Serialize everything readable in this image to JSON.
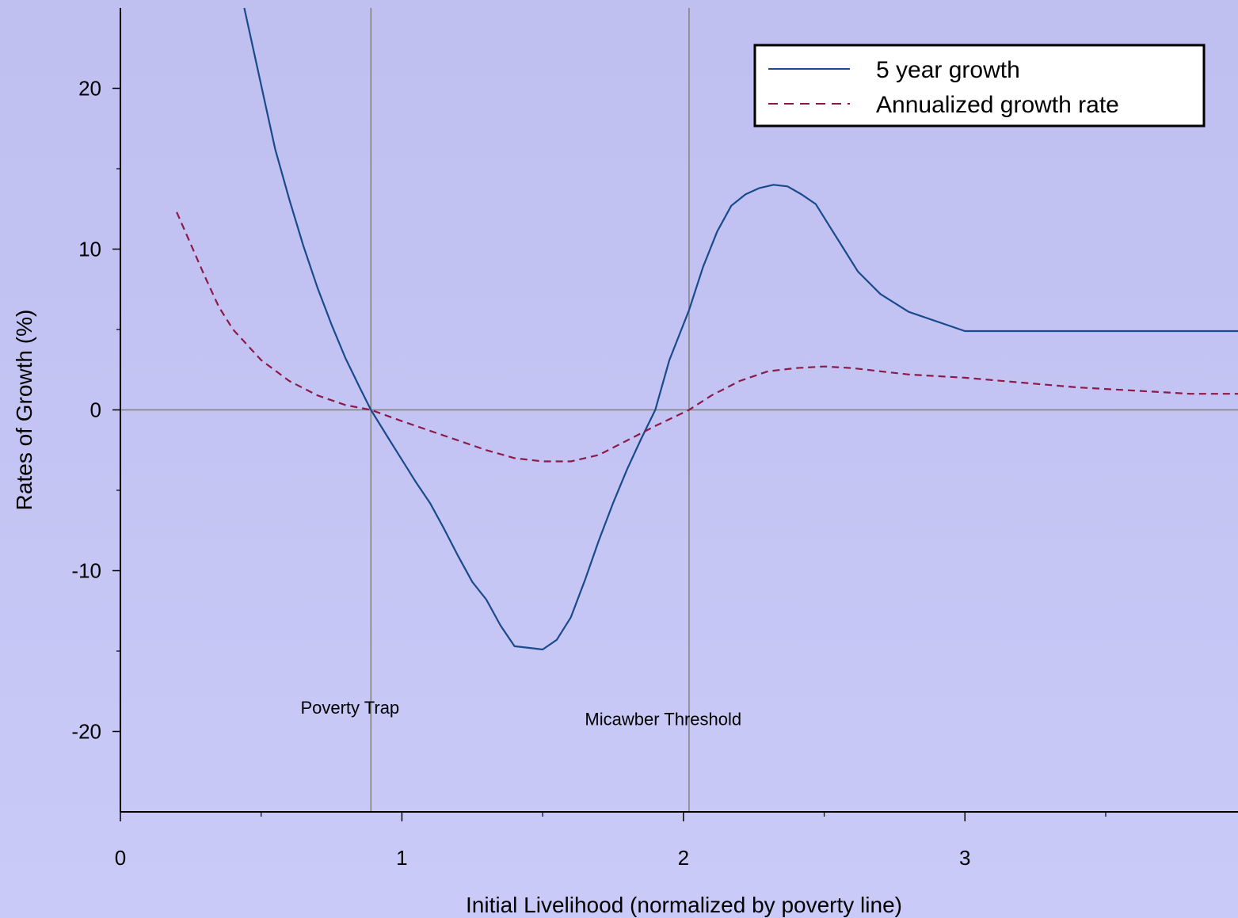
{
  "chart_data": {
    "type": "line",
    "xlabel": "Initial Livelihood (normalized by poverty line)",
    "ylabel": "Rates of Growth (%)",
    "xlim": [
      0,
      3.97
    ],
    "ylim": [
      -25,
      25
    ],
    "x_ticks": [
      0,
      1,
      2,
      3
    ],
    "x_minor_ticks": [
      0.5,
      1.5,
      2.5,
      3.5
    ],
    "y_ticks": [
      -20,
      -10,
      0,
      10,
      20
    ],
    "y_minor_ticks": [
      -15,
      -5,
      5,
      15
    ],
    "grid": false,
    "legend_position": "top-right",
    "reference_lines": {
      "horizontal_y": 0,
      "vertical_x": [
        0.89,
        2.02
      ]
    },
    "annotations": [
      {
        "text": "Poverty Trap",
        "x": 0.64,
        "y": -18.9
      },
      {
        "text": "Micawber Threshold",
        "x": 1.65,
        "y": -19.6
      }
    ],
    "series": [
      {
        "name": "5 year growth",
        "color": "#1a4a8c",
        "style": "solid",
        "x": [
          0.44,
          0.5,
          0.55,
          0.6,
          0.65,
          0.7,
          0.75,
          0.8,
          0.85,
          0.89,
          0.95,
          1.0,
          1.05,
          1.1,
          1.15,
          1.2,
          1.25,
          1.3,
          1.35,
          1.4,
          1.45,
          1.5,
          1.55,
          1.6,
          1.65,
          1.7,
          1.75,
          1.8,
          1.85,
          1.9,
          1.95,
          2.02,
          2.07,
          2.12,
          2.17,
          2.22,
          2.27,
          2.32,
          2.37,
          2.42,
          2.47,
          2.52,
          2.57,
          2.62,
          2.7,
          2.8,
          3.0,
          3.2,
          3.4,
          3.6,
          3.8,
          3.97
        ],
        "y": [
          25,
          20.2,
          16.2,
          13.1,
          10.2,
          7.6,
          5.3,
          3.2,
          1.4,
          0,
          -1.7,
          -3.1,
          -4.5,
          -5.8,
          -7.4,
          -9.1,
          -10.7,
          -11.8,
          -13.4,
          -14.7,
          -14.8,
          -14.9,
          -14.3,
          -12.9,
          -10.6,
          -8.1,
          -5.8,
          -3.7,
          -1.8,
          0,
          3.1,
          6.2,
          8.9,
          11.1,
          12.7,
          13.4,
          13.8,
          14.0,
          13.9,
          13.4,
          12.8,
          11.4,
          10.0,
          8.6,
          7.2,
          6.1,
          4.9,
          4.9,
          4.9,
          4.9,
          4.9,
          4.9
        ]
      },
      {
        "name": "Annualized growth rate",
        "color": "#8b1a4a",
        "style": "dashed",
        "x": [
          0.2,
          0.25,
          0.3,
          0.35,
          0.4,
          0.5,
          0.6,
          0.7,
          0.8,
          0.89,
          1.0,
          1.1,
          1.2,
          1.3,
          1.4,
          1.5,
          1.6,
          1.7,
          1.8,
          1.9,
          2.02,
          2.1,
          2.2,
          2.3,
          2.4,
          2.5,
          2.6,
          2.7,
          2.8,
          3.0,
          3.2,
          3.4,
          3.6,
          3.8,
          3.97
        ],
        "y": [
          12.3,
          10.3,
          8.3,
          6.4,
          5.0,
          3.1,
          1.8,
          0.9,
          0.3,
          0,
          -0.7,
          -1.3,
          -1.9,
          -2.5,
          -3.0,
          -3.2,
          -3.2,
          -2.8,
          -1.9,
          -1.0,
          0,
          0.9,
          1.8,
          2.4,
          2.6,
          2.7,
          2.6,
          2.4,
          2.2,
          2.0,
          1.7,
          1.4,
          1.2,
          1.0,
          1.0
        ]
      }
    ]
  }
}
